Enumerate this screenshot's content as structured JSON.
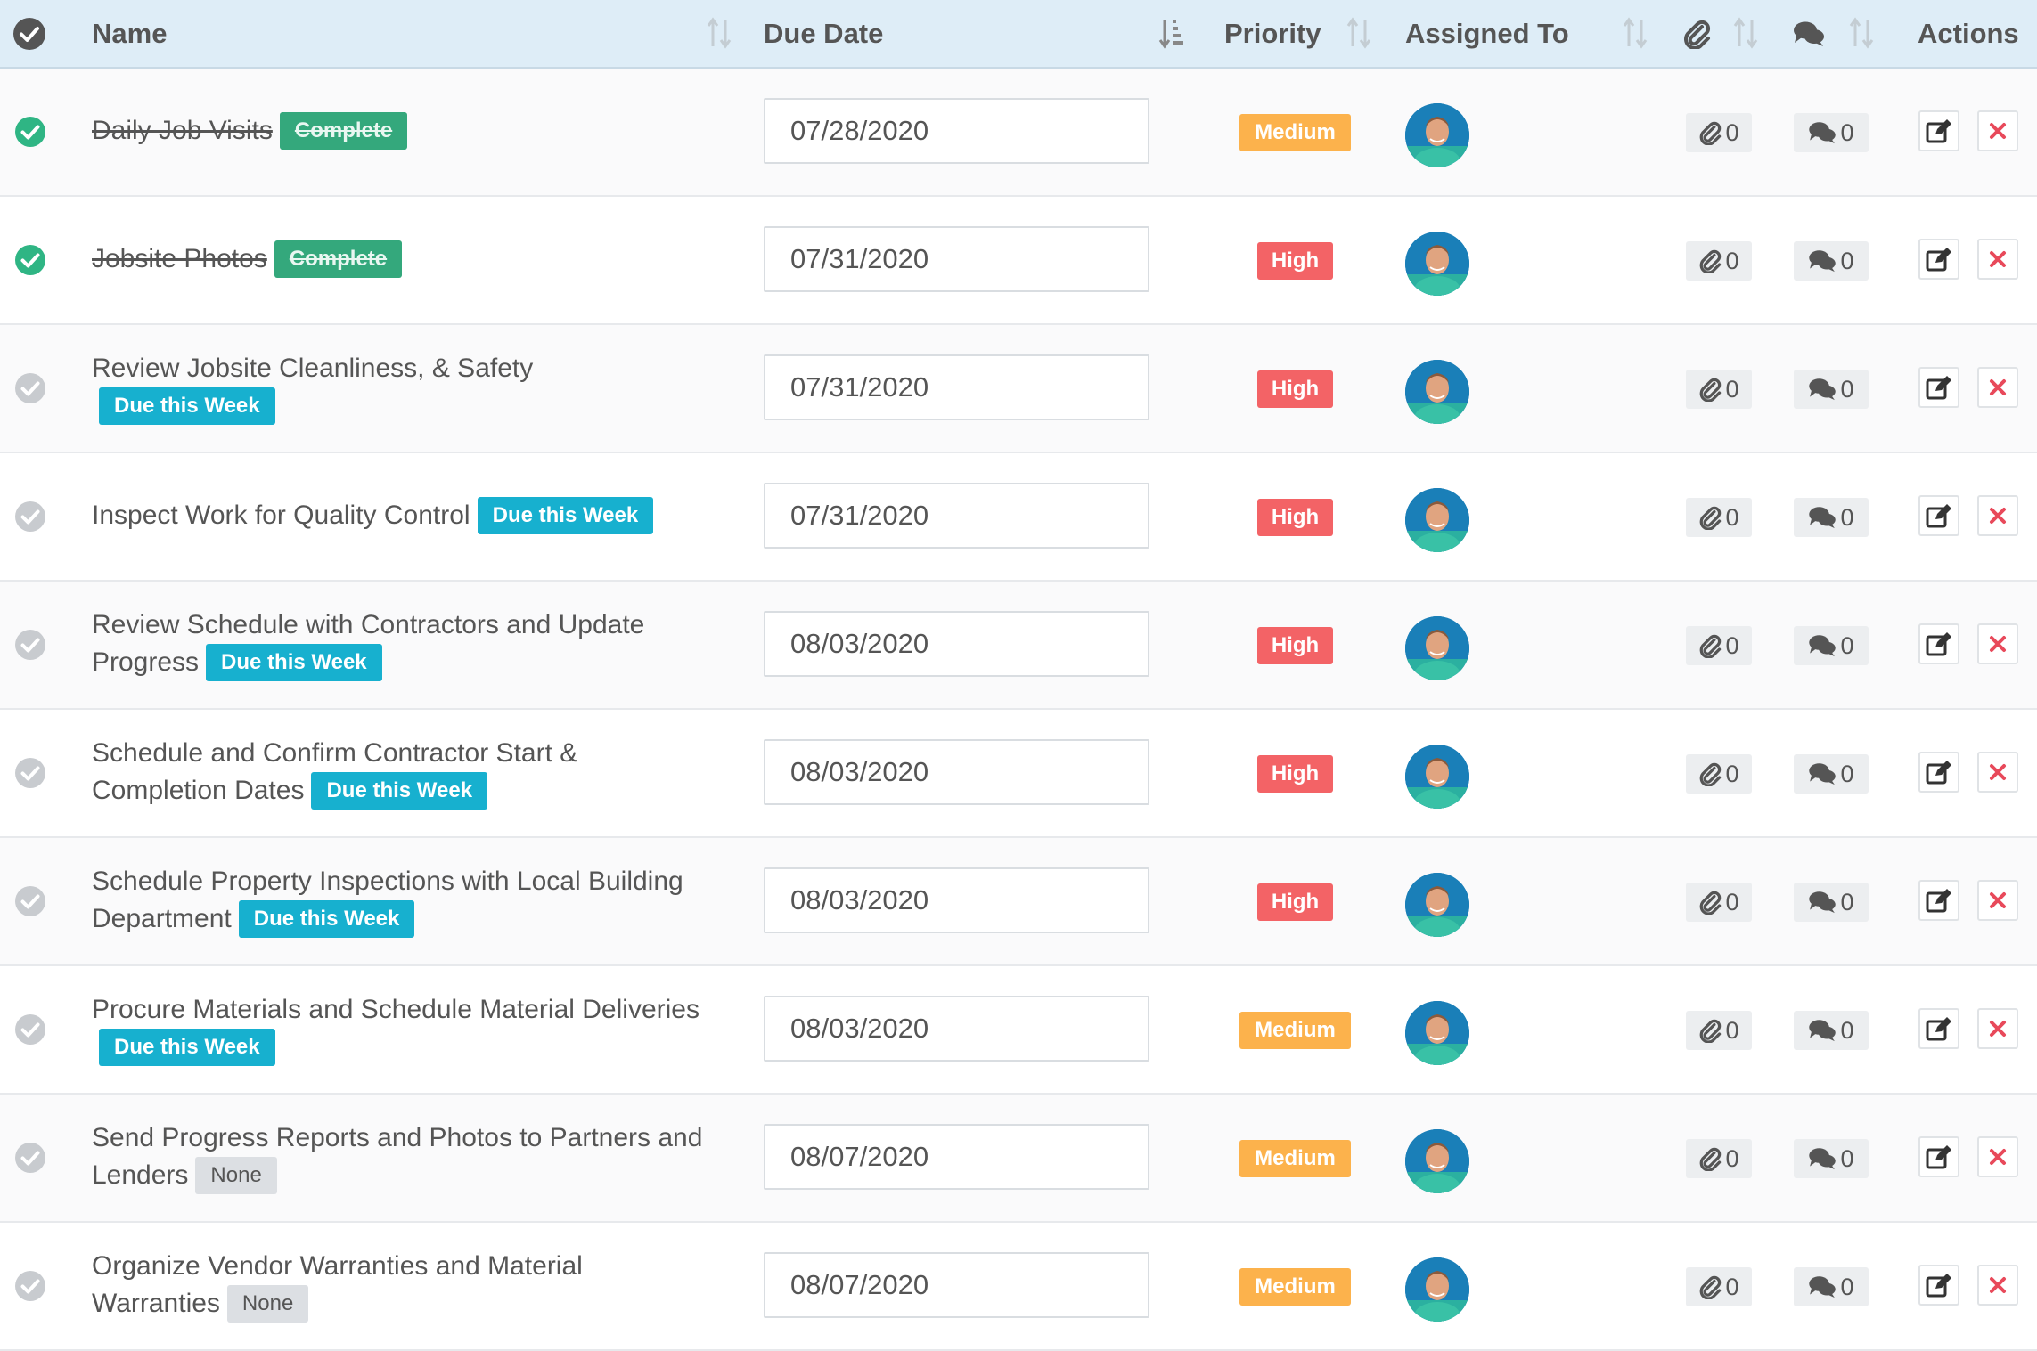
{
  "header": {
    "name": "Name",
    "due_date": "Due Date",
    "priority": "Priority",
    "assigned_to": "Assigned To",
    "actions": "Actions"
  },
  "colors": {
    "complete_tag": "#34a87c",
    "due_week_tag": "#17b0cf",
    "none_tag": "#dcdfe3",
    "priority_medium": "#fcb24c",
    "priority_high": "#f36366",
    "check_done": "#2fb584",
    "check_pending": "#c8cbcf",
    "delete_icon": "#e8495a",
    "header_bg": "#deedf7"
  },
  "rows": [
    {
      "name": "Daily Job Visits",
      "done": true,
      "tag": "Complete",
      "tag_type": "complete",
      "date": "07/28/2020",
      "priority": "Medium",
      "attachments": "0",
      "comments": "0"
    },
    {
      "name": "Jobsite Photos",
      "done": true,
      "tag": "Complete",
      "tag_type": "complete",
      "date": "07/31/2020",
      "priority": "High",
      "attachments": "0",
      "comments": "0"
    },
    {
      "name": "Review Jobsite Cleanliness, & Safety",
      "done": false,
      "tag": "Due this Week",
      "tag_type": "dueweek",
      "date": "07/31/2020",
      "priority": "High",
      "attachments": "0",
      "comments": "0"
    },
    {
      "name": "Inspect Work for Quality Control",
      "done": false,
      "tag": "Due this Week",
      "tag_type": "dueweek",
      "date": "07/31/2020",
      "priority": "High",
      "attachments": "0",
      "comments": "0"
    },
    {
      "name": "Review Schedule with Contractors and Update Progress",
      "done": false,
      "tag": "Due this Week",
      "tag_type": "dueweek",
      "date": "08/03/2020",
      "priority": "High",
      "attachments": "0",
      "comments": "0"
    },
    {
      "name": "Schedule and Confirm Contractor Start & Completion Dates",
      "done": false,
      "tag": "Due this Week",
      "tag_type": "dueweek",
      "date": "08/03/2020",
      "priority": "High",
      "attachments": "0",
      "comments": "0"
    },
    {
      "name": "Schedule Property Inspections with Local Building Department",
      "done": false,
      "tag": "Due this Week",
      "tag_type": "dueweek",
      "date": "08/03/2020",
      "priority": "High",
      "attachments": "0",
      "comments": "0"
    },
    {
      "name": "Procure Materials and Schedule Material Deliveries",
      "done": false,
      "tag": "Due this Week",
      "tag_type": "dueweek",
      "date": "08/03/2020",
      "priority": "Medium",
      "attachments": "0",
      "comments": "0"
    },
    {
      "name": "Send Progress Reports and Photos to Partners and Lenders",
      "done": false,
      "tag": "None",
      "tag_type": "none",
      "date": "08/07/2020",
      "priority": "Medium",
      "attachments": "0",
      "comments": "0"
    },
    {
      "name": "Organize Vendor Warranties and Material Warranties",
      "done": false,
      "tag": "None",
      "tag_type": "none",
      "date": "08/07/2020",
      "priority": "Medium",
      "attachments": "0",
      "comments": "0"
    }
  ]
}
